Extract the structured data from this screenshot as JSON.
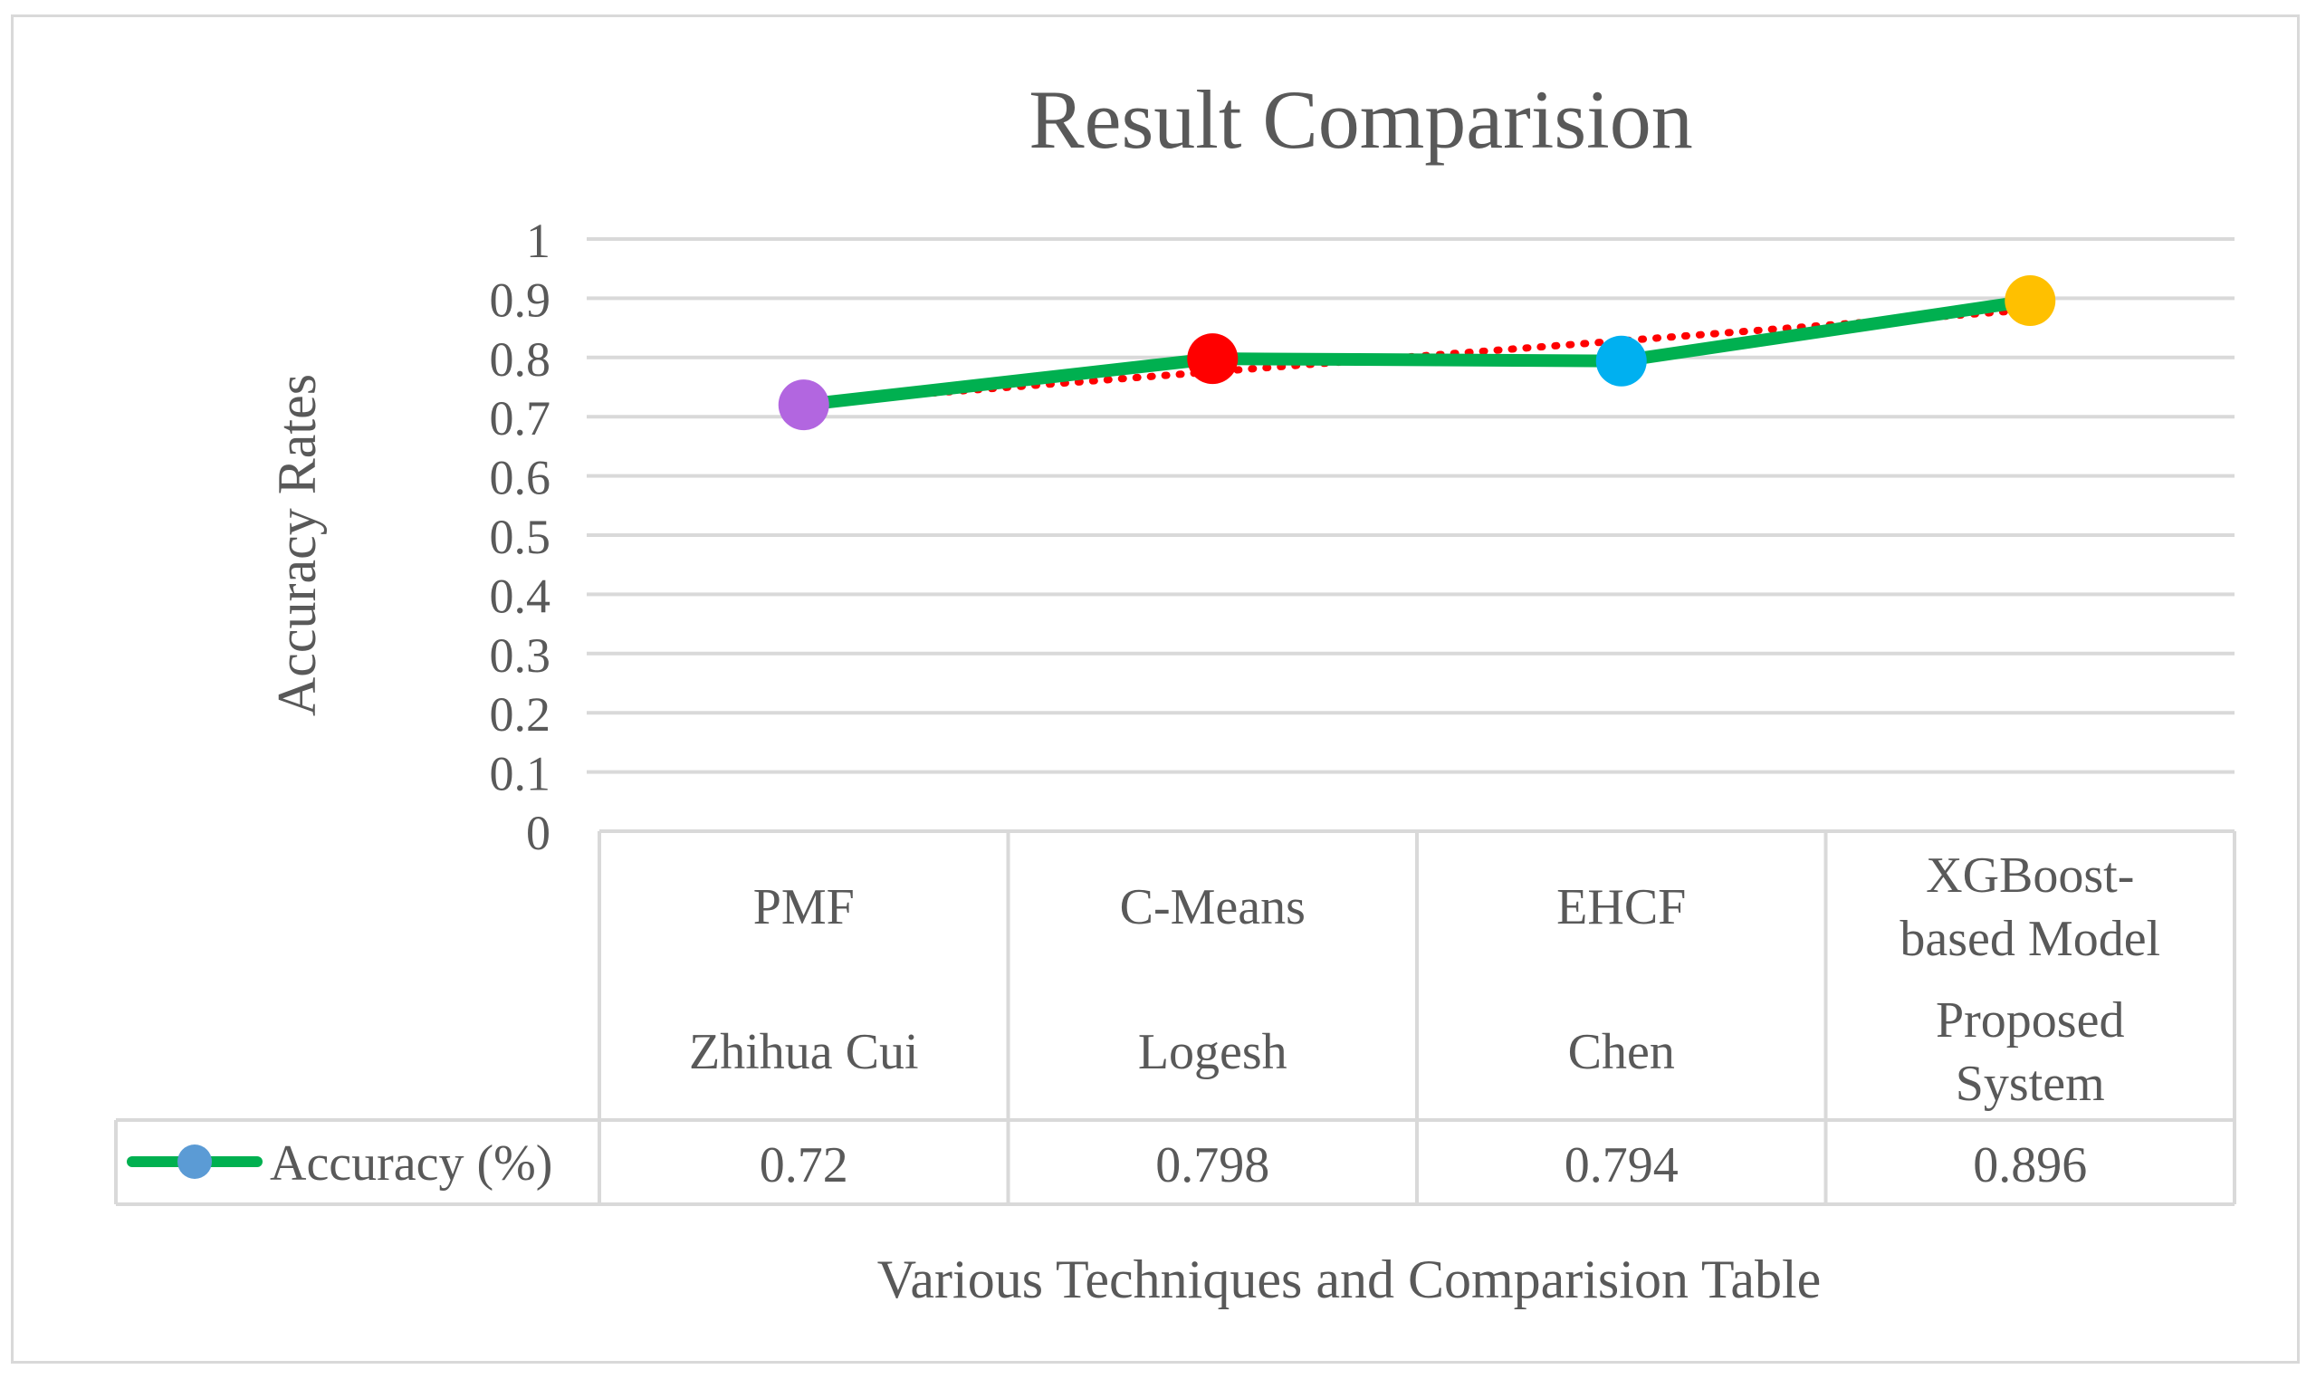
{
  "chart_data": {
    "type": "line",
    "title": "Result Comparision",
    "xlabel": "Various Techniques and Comparision Table",
    "ylabel": "Accuracy Rates",
    "ylim": [
      0,
      1
    ],
    "yticks": [
      "0",
      "0.1",
      "0.2",
      "0.3",
      "0.4",
      "0.5",
      "0.6",
      "0.7",
      "0.8",
      "0.9",
      "1"
    ],
    "grid": true,
    "categories": [
      {
        "line1": [
          "PMF"
        ],
        "line2": [
          "Zhihua Cui"
        ]
      },
      {
        "line1": [
          "C-Means"
        ],
        "line2": [
          "Logesh"
        ]
      },
      {
        "line1": [
          "EHCF"
        ],
        "line2": [
          "Chen"
        ]
      },
      {
        "line1": [
          "XGBoost-",
          "based Model"
        ],
        "line2": [
          "Proposed",
          "System"
        ]
      }
    ],
    "series": [
      {
        "name": "Accuracy (%)",
        "values": [
          0.72,
          0.798,
          0.794,
          0.896
        ],
        "table_values": [
          "0.72",
          "0.798",
          "0.794",
          "0.896"
        ],
        "line_color": "#00b050",
        "legend_marker_color": "#5b9bd5",
        "marker_colors": [
          "#b266e0",
          "#ff0000",
          "#00b0f0",
          "#ffc000"
        ]
      }
    ],
    "trendline": {
      "type": "linear",
      "color": "#ff0000",
      "style": "dotted"
    },
    "data_table": true
  }
}
